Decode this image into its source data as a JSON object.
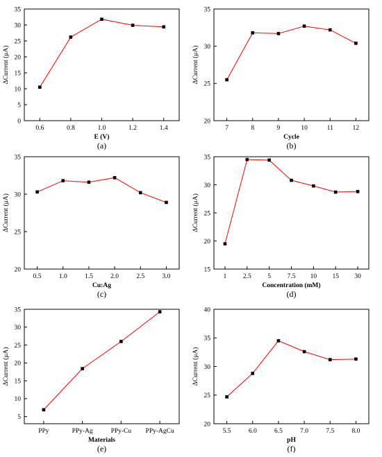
{
  "chart_data": [
    {
      "type": "line",
      "panel_label": "(a)",
      "xlabel": "E (V)",
      "ylabel": "ΔCurrent (μA)",
      "x": [
        0.6,
        0.8,
        1.0,
        1.2,
        1.4
      ],
      "values": [
        10.5,
        26.2,
        31.8,
        29.9,
        29.4
      ],
      "xlim": [
        0.5,
        1.5
      ],
      "ylim": [
        0,
        35
      ],
      "xticks": [
        0.6,
        0.8,
        1.0,
        1.2,
        1.4
      ],
      "xtick_labels": [
        "0.6",
        "0.8",
        "1.0",
        "1.2",
        "1.4"
      ],
      "yticks": [
        0,
        5,
        10,
        15,
        20,
        25,
        30,
        35
      ],
      "ytick_labels": [
        "0",
        "5",
        "10",
        "15",
        "20",
        "25",
        "30",
        "35"
      ],
      "line_color": "#ff0000",
      "marker_color": "#000000",
      "grid": false
    },
    {
      "type": "line",
      "panel_label": "(b)",
      "xlabel": "Cycle",
      "ylabel": "ΔCurrent (μA)",
      "x": [
        7,
        8,
        9,
        10,
        11,
        12
      ],
      "values": [
        25.5,
        31.8,
        31.7,
        32.7,
        32.2,
        30.4
      ],
      "xlim": [
        6.5,
        12.5
      ],
      "ylim": [
        20,
        35
      ],
      "xticks": [
        7,
        8,
        9,
        10,
        11,
        12
      ],
      "xtick_labels": [
        "7",
        "8",
        "9",
        "10",
        "11",
        "12"
      ],
      "yticks": [
        20,
        25,
        30,
        35
      ],
      "ytick_labels": [
        "20",
        "25",
        "30",
        "35"
      ],
      "line_color": "#ff0000",
      "marker_color": "#000000",
      "grid": false
    },
    {
      "type": "line",
      "panel_label": "(c)",
      "xlabel": "Cu:Ag",
      "ylabel": "ΔCurrent (μA)",
      "x": [
        0.5,
        1.0,
        1.5,
        2.0,
        2.5,
        3.0
      ],
      "values": [
        30.3,
        31.8,
        31.6,
        32.2,
        30.2,
        28.9
      ],
      "xlim": [
        0.25,
        3.25
      ],
      "ylim": [
        20,
        35
      ],
      "xticks": [
        0.5,
        1.0,
        1.5,
        2.0,
        2.5,
        3.0
      ],
      "xtick_labels": [
        "0.5",
        "1.0",
        "1.5",
        "2.0",
        "2.5",
        "3.0"
      ],
      "yticks": [
        20,
        25,
        30,
        35
      ],
      "ytick_labels": [
        "20",
        "25",
        "30",
        "35"
      ],
      "line_color": "#ff0000",
      "marker_color": "#000000",
      "grid": false
    },
    {
      "type": "line",
      "panel_label": "(d)",
      "xlabel": "Concentration (mM)",
      "ylabel": "ΔCurrent (μA)",
      "categories": [
        "1",
        "2.5",
        "5",
        "7.5",
        "10",
        "15",
        "30"
      ],
      "values": [
        19.5,
        34.5,
        34.4,
        30.8,
        29.8,
        28.7,
        28.8
      ],
      "ylim": [
        15,
        35
      ],
      "yticks": [
        15,
        20,
        25,
        30,
        35
      ],
      "ytick_labels": [
        "15",
        "20",
        "25",
        "30",
        "35"
      ],
      "line_color": "#ff0000",
      "marker_color": "#000000",
      "grid": false
    },
    {
      "type": "line",
      "panel_label": "(e)",
      "xlabel": "Materials",
      "ylabel": "ΔCurrent (μA)",
      "categories": [
        "PPy",
        "PPy-Ag",
        "PPy-Cu",
        "PPy-AgCu"
      ],
      "values": [
        6.9,
        18.4,
        26.0,
        34.3
      ],
      "ylim": [
        3,
        35
      ],
      "yticks": [
        5,
        10,
        15,
        20,
        25,
        30,
        35
      ],
      "ytick_labels": [
        "5",
        "10",
        "15",
        "20",
        "25",
        "30",
        "35"
      ],
      "line_color": "#ff0000",
      "marker_color": "#000000",
      "grid": false
    },
    {
      "type": "line",
      "panel_label": "(f)",
      "xlabel": "pH",
      "ylabel": "ΔCurrent (μA)",
      "x": [
        5.5,
        6.0,
        6.5,
        7.0,
        7.5,
        8.0
      ],
      "values": [
        24.7,
        28.8,
        34.5,
        32.6,
        31.2,
        31.3
      ],
      "xlim": [
        5.25,
        8.25
      ],
      "ylim": [
        20,
        40
      ],
      "xticks": [
        5.5,
        6.0,
        6.5,
        7.0,
        7.5,
        8.0
      ],
      "xtick_labels": [
        "5.5",
        "6.0",
        "6.5",
        "7.0",
        "7.5",
        "8.0"
      ],
      "yticks": [
        20,
        25,
        30,
        35,
        40
      ],
      "ytick_labels": [
        "20",
        "25",
        "30",
        "35",
        "40"
      ],
      "line_color": "#ff0000",
      "marker_color": "#000000",
      "grid": false
    }
  ]
}
